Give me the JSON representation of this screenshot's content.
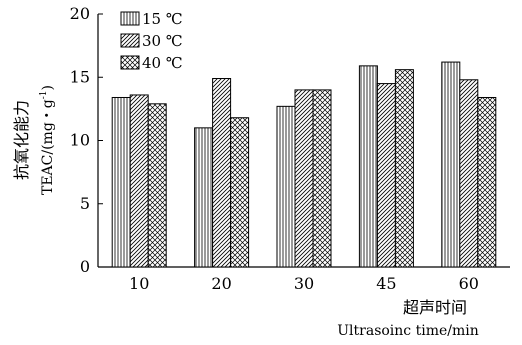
{
  "chart_data": {
    "type": "bar",
    "title": "",
    "categories": [
      "10",
      "20",
      "30",
      "45",
      "60"
    ],
    "series": [
      {
        "name": "15 ℃",
        "pattern": "vertical-lines",
        "values": [
          13.4,
          11.0,
          12.7,
          15.9,
          16.2
        ]
      },
      {
        "name": "30 ℃",
        "pattern": "diagonal-lines",
        "values": [
          13.6,
          14.9,
          14.0,
          14.5,
          14.8
        ]
      },
      {
        "name": "40 ℃",
        "pattern": "crosshatch",
        "values": [
          12.9,
          11.8,
          14.0,
          15.6,
          13.4
        ]
      }
    ],
    "ylim": [
      0,
      20
    ],
    "yticks": [
      "0",
      "5",
      "10",
      "15",
      "20"
    ],
    "ylabel_cn": "抗氧化能力",
    "ylabel_en_prefix": "TEAC/(mg・g",
    "ylabel_en_sup": "-1",
    "ylabel_en_suffix": ")",
    "xlabel_cn": "超声时间",
    "xlabel_en": "Ultrasoinc time/min",
    "legend_position": "top-left",
    "grid": false,
    "colors": {
      "stroke": "#000000",
      "fill": "#ffffff"
    }
  }
}
